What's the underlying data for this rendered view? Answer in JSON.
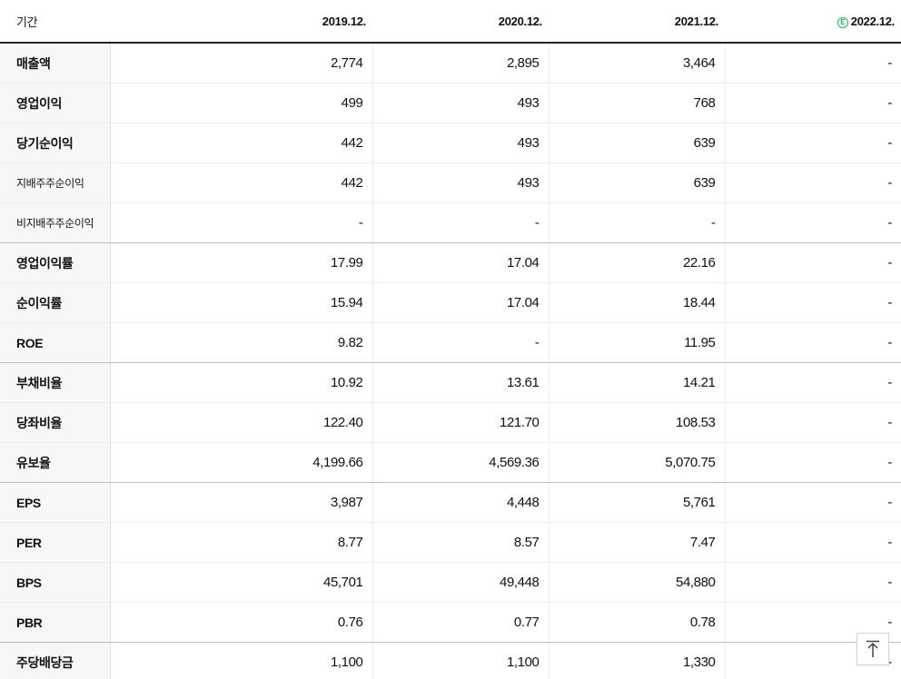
{
  "header": {
    "period_label": "기간",
    "years": [
      "2019.12.",
      "2020.12.",
      "2021.12.",
      "2022.12."
    ],
    "estimate_badge": "E"
  },
  "rows": [
    {
      "label": "매출액",
      "values": [
        "2,774",
        "2,895",
        "3,464",
        "-"
      ]
    },
    {
      "label": "영업이익",
      "values": [
        "499",
        "493",
        "768",
        "-"
      ]
    },
    {
      "label": "당기순이익",
      "values": [
        "442",
        "493",
        "639",
        "-"
      ]
    },
    {
      "label": "지배주주순이익",
      "values": [
        "442",
        "493",
        "639",
        "-"
      ]
    },
    {
      "label": "비지배주주순이익",
      "values": [
        "-",
        "-",
        "-",
        "-"
      ]
    },
    {
      "label": "영업이익률",
      "values": [
        "17.99",
        "17.04",
        "22.16",
        "-"
      ]
    },
    {
      "label": "순이익률",
      "values": [
        "15.94",
        "17.04",
        "18.44",
        "-"
      ]
    },
    {
      "label": "ROE",
      "values": [
        "9.82",
        "-",
        "11.95",
        "-"
      ]
    },
    {
      "label": "부채비율",
      "values": [
        "10.92",
        "13.61",
        "14.21",
        "-"
      ]
    },
    {
      "label": "당좌비율",
      "values": [
        "122.40",
        "121.70",
        "108.53",
        "-"
      ]
    },
    {
      "label": "유보율",
      "values": [
        "4,199.66",
        "4,569.36",
        "5,070.75",
        "-"
      ]
    },
    {
      "label": "EPS",
      "values": [
        "3,987",
        "4,448",
        "5,761",
        "-"
      ]
    },
    {
      "label": "PER",
      "values": [
        "8.77",
        "8.57",
        "7.47",
        "-"
      ]
    },
    {
      "label": "BPS",
      "values": [
        "45,701",
        "49,448",
        "54,880",
        "-"
      ]
    },
    {
      "label": "PBR",
      "values": [
        "0.76",
        "0.77",
        "0.78",
        "-"
      ]
    },
    {
      "label": "주당배당금",
      "values": [
        "1,100",
        "1,100",
        "1,330",
        "-"
      ]
    }
  ],
  "icons": {
    "scroll_top": "arrow-up-to-top-icon",
    "estimate": "estimate-badge-icon"
  },
  "colors": {
    "estimate_accent": "#1fb35a",
    "label_background": "#f7f7f7"
  }
}
